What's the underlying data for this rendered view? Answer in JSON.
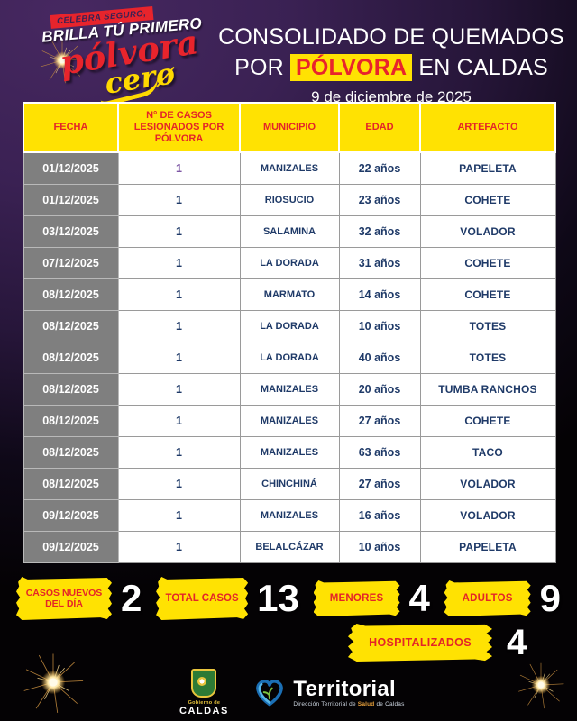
{
  "campaign_logo": {
    "ribbon": "CELEBRA SEGURO,",
    "line2": "BRILLA TÚ PRIMERO",
    "script1": "pólvora",
    "script2": "cerø"
  },
  "header": {
    "title_line1": "CONSOLIDADO DE QUEMADOS",
    "title_line2_pre": "POR ",
    "title_highlight": "PÓLVORA",
    "title_line2_post": " EN CALDAS",
    "date": "9 de diciembre de 2025"
  },
  "table": {
    "columns": [
      "FECHA",
      "N° DE CASOS LESIONADOS POR PÓLVORA",
      "MUNICIPIO",
      "EDAD",
      "ARTEFACTO"
    ],
    "rows": [
      [
        "01/12/2025",
        "1",
        "MANIZALES",
        "22 años",
        "PAPELETA"
      ],
      [
        "01/12/2025",
        "1",
        "RIOSUCIO",
        "23 años",
        "COHETE"
      ],
      [
        "03/12/2025",
        "1",
        "SALAMINA",
        "32 años",
        "VOLADOR"
      ],
      [
        "07/12/2025",
        "1",
        "LA DORADA",
        "31 años",
        "COHETE"
      ],
      [
        "08/12/2025",
        "1",
        "MARMATO",
        "14 años",
        "COHETE"
      ],
      [
        "08/12/2025",
        "1",
        "LA DORADA",
        "10 años",
        "TOTES"
      ],
      [
        "08/12/2025",
        "1",
        "LA DORADA",
        "40 años",
        "TOTES"
      ],
      [
        "08/12/2025",
        "1",
        "MANIZALES",
        "20 años",
        "TUMBA RANCHOS"
      ],
      [
        "08/12/2025",
        "1",
        "MANIZALES",
        "27 años",
        "COHETE"
      ],
      [
        "08/12/2025",
        "1",
        "MANIZALES",
        "63 años",
        "TACO"
      ],
      [
        "08/12/2025",
        "1",
        "CHINCHINÁ",
        "27 años",
        "VOLADOR"
      ],
      [
        "09/12/2025",
        "1",
        "MANIZALES",
        "16 años",
        "VOLADOR"
      ],
      [
        "09/12/2025",
        "1",
        "BELALCÁZAR",
        "10 años",
        "PAPELETA"
      ]
    ]
  },
  "stats": [
    {
      "label": "CASOS NUEVOS DEL DÍA",
      "value": "2"
    },
    {
      "label": "TOTAL CASOS",
      "value": "13"
    },
    {
      "label": "MENORES",
      "value": "4"
    },
    {
      "label": "ADULTOS",
      "value": "9"
    },
    {
      "label": "HOSPITALIZADOS",
      "value": "4"
    }
  ],
  "footer": {
    "caldas_small": "Gobierno de",
    "caldas_big": "CALDAS",
    "territorial_name": "Territorial",
    "territorial_sub_pre": "Dirección Territorial de ",
    "territorial_sub_hl": "Salud",
    "territorial_sub_post": " de Caldas"
  },
  "colors": {
    "background_purple": "#3a2153",
    "highlight_yellow": "#ffe202",
    "accent_red": "#e42528",
    "cell_navy": "#1f3a68",
    "date_column_gray": "#7f7f7f"
  }
}
